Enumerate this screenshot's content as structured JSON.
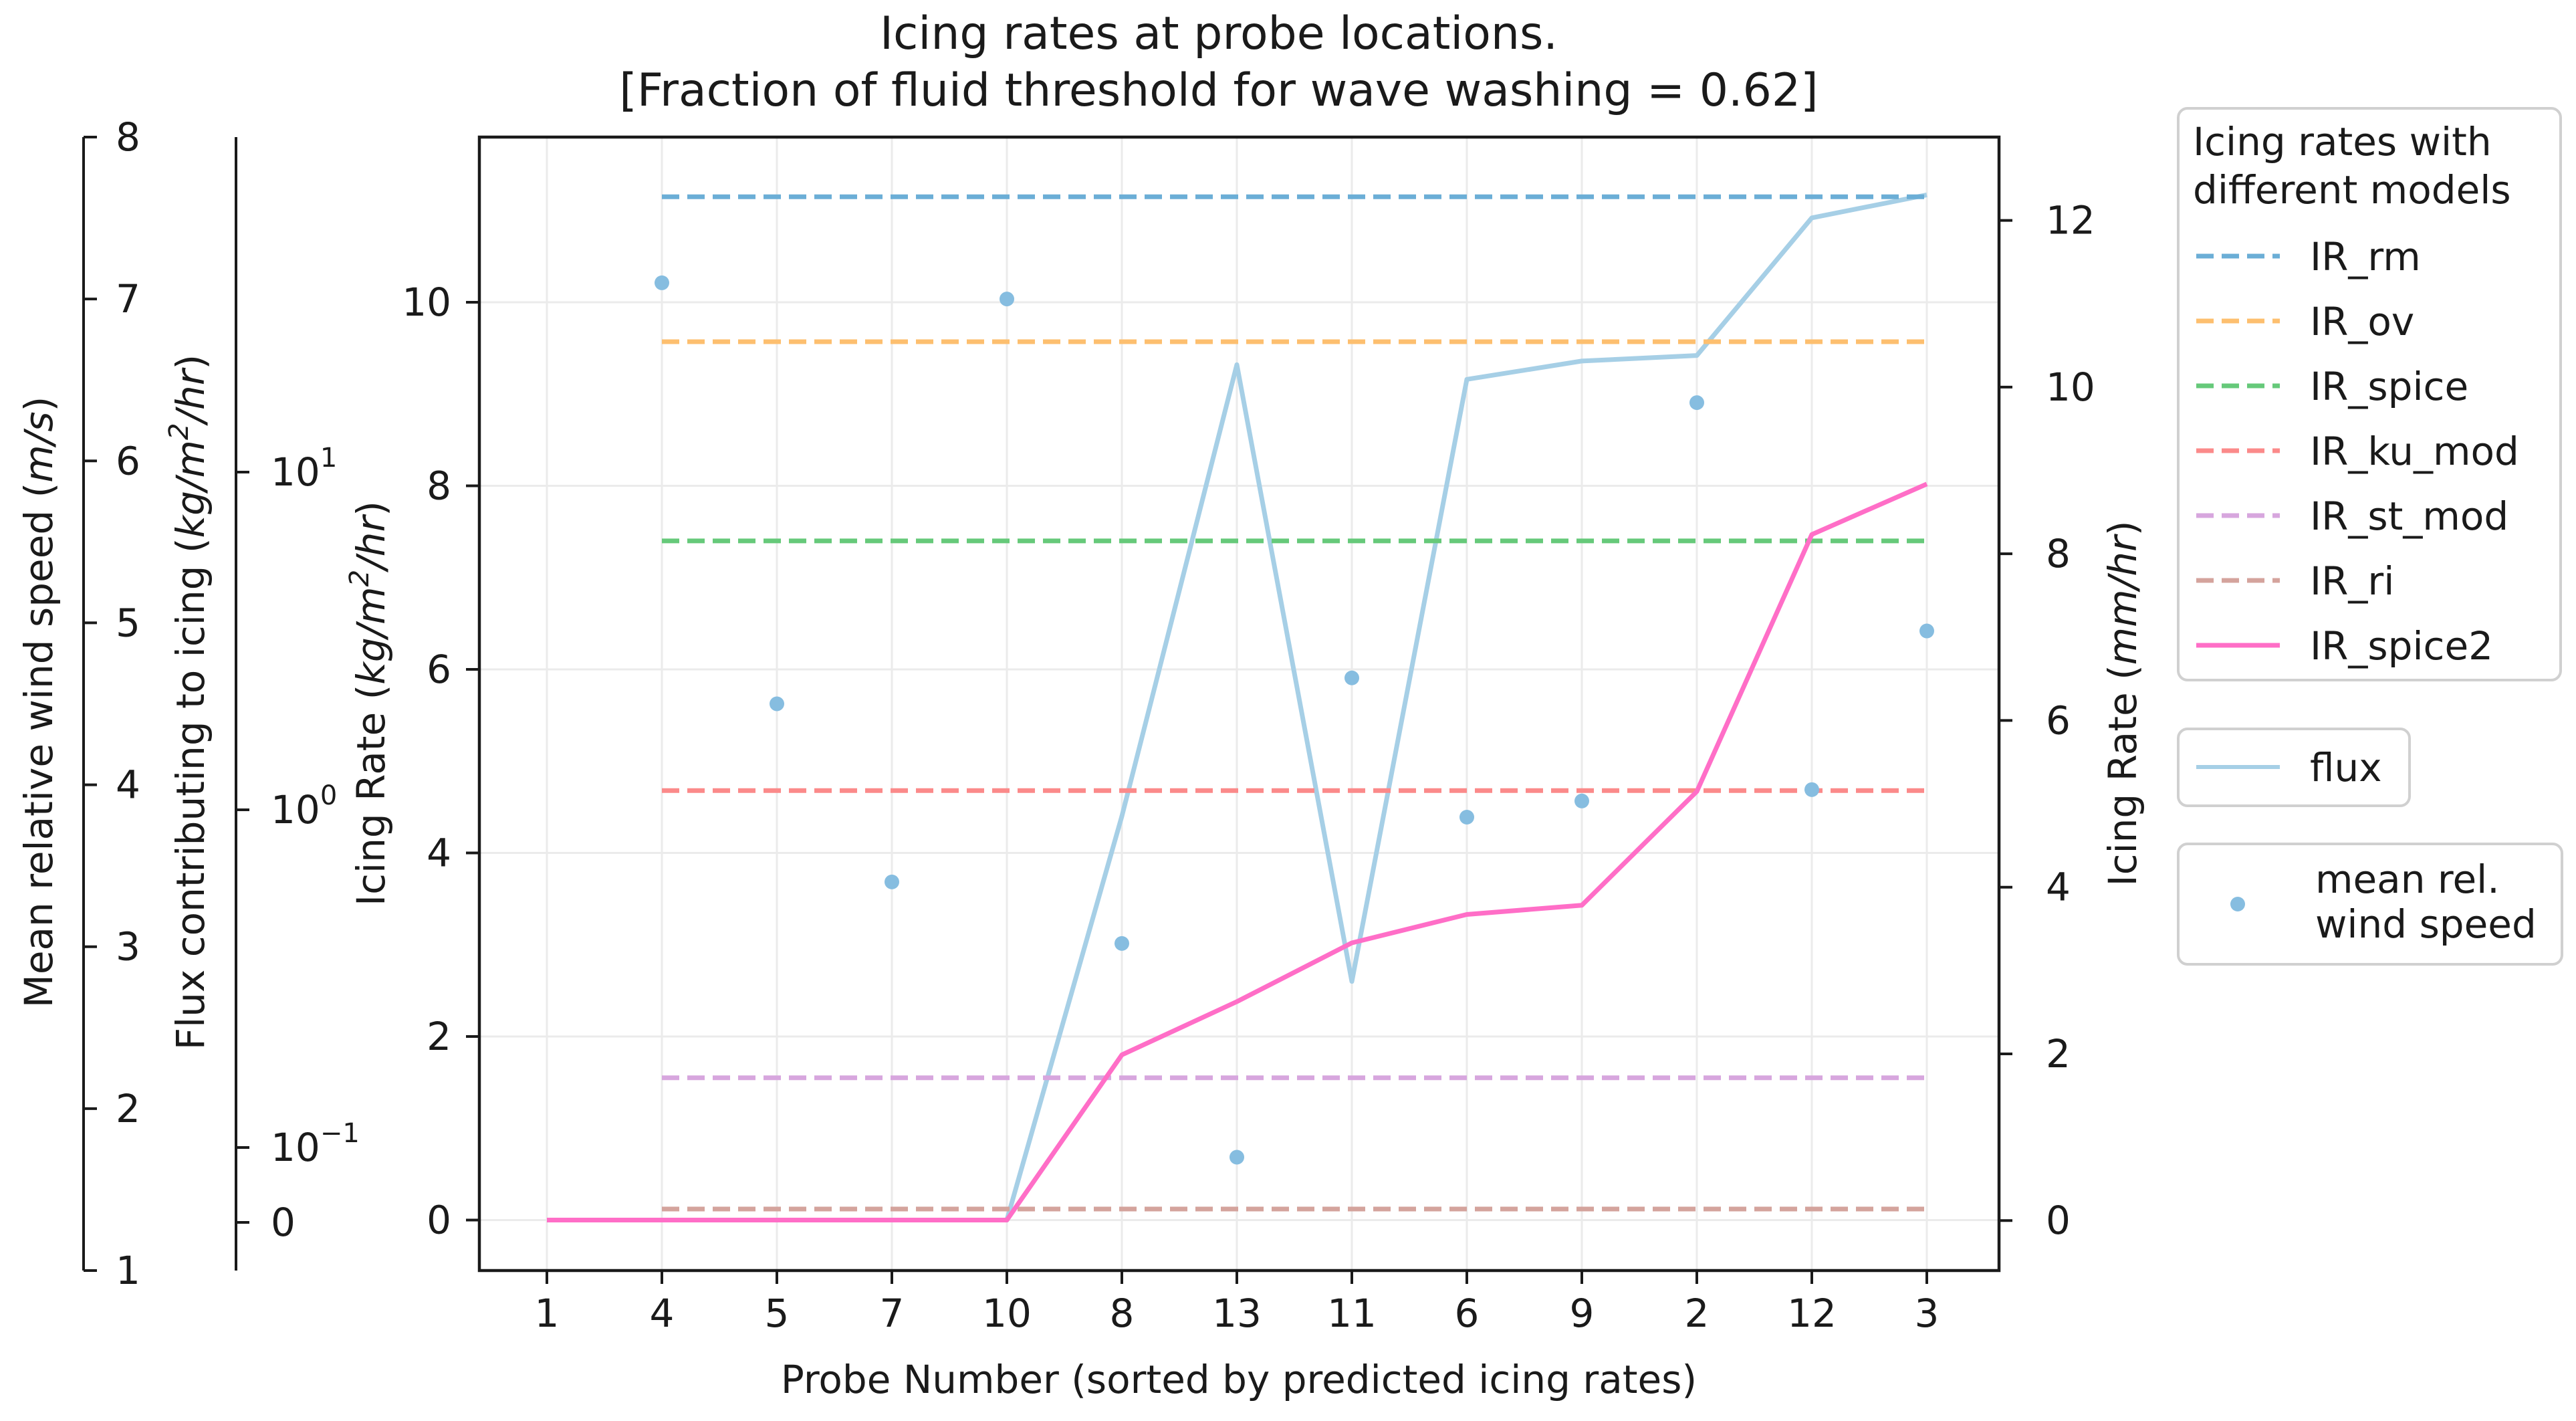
{
  "chart_data": {
    "type": "line",
    "title": [
      "Icing rates at probe locations.",
      "[Fraction of fluid threshold for wave washing = 0.62]"
    ],
    "xlabel": "Probe Number (sorted by predicted icing rates)",
    "categories": [
      "1",
      "4",
      "5",
      "7",
      "10",
      "8",
      "13",
      "11",
      "6",
      "9",
      "2",
      "12",
      "3"
    ],
    "axes": {
      "left_primary": {
        "label": "Icing Rate (kg/m²/hr)",
        "label_parts": [
          "Icing Rate (",
          "kg/m",
          "2",
          "/hr",
          ")"
        ],
        "ylim": [
          -0.55,
          11.8
        ],
        "ticks": [
          0,
          2,
          4,
          6,
          8,
          10
        ]
      },
      "right": {
        "label": "Icing Rate (mm/hr)",
        "label_parts": [
          "Icing Rate (",
          "mm/hr",
          ")"
        ],
        "ylim": [
          -0.6,
          13.0
        ],
        "ticks": [
          0,
          2,
          4,
          6,
          8,
          10,
          12
        ]
      },
      "flux": {
        "label": "Flux contributing to icing (kg/m²/hr)",
        "label_parts": [
          "Flux contributing to icing (",
          "kg/m",
          "2",
          "/hr",
          ")"
        ],
        "scale": "symlog",
        "linthresh": 0.1,
        "ticks": [
          {
            "value": 0,
            "base": "0",
            "exp": ""
          },
          {
            "value": 0.1,
            "base": "10",
            "exp": "−1"
          },
          {
            "value": 1,
            "base": "10",
            "exp": "0"
          },
          {
            "value": 10,
            "base": "10",
            "exp": "1"
          }
        ]
      },
      "wind": {
        "label": "Mean relative wind speed (m/s)",
        "label_parts": [
          "Mean relative wind speed (",
          "m/s",
          ")"
        ],
        "ylim": [
          1,
          8
        ],
        "ticks": [
          1,
          2,
          3,
          4,
          5,
          6,
          7,
          8
        ]
      }
    },
    "series": [
      {
        "name": "IR_rm",
        "color": "#6baed6",
        "style": "dashed",
        "values": [
          null,
          11.15,
          11.15,
          11.15,
          11.15,
          11.15,
          11.15,
          11.15,
          11.15,
          11.15,
          11.15,
          11.15,
          11.15
        ]
      },
      {
        "name": "IR_ov",
        "color": "#fdbf6f",
        "style": "dashed",
        "values": [
          null,
          9.57,
          9.57,
          9.57,
          9.57,
          9.57,
          9.57,
          9.57,
          9.57,
          9.57,
          9.57,
          9.57,
          9.57
        ]
      },
      {
        "name": "IR_spice",
        "color": "#66c97a",
        "style": "dashed",
        "values": [
          null,
          7.4,
          7.4,
          7.4,
          7.4,
          7.4,
          7.4,
          7.4,
          7.4,
          7.4,
          7.4,
          7.4,
          7.4
        ]
      },
      {
        "name": "IR_ku_mod",
        "color": "#fb8a8a",
        "style": "dashed",
        "values": [
          null,
          4.68,
          4.68,
          4.68,
          4.68,
          4.68,
          4.68,
          4.68,
          4.68,
          4.68,
          4.68,
          4.68,
          4.68
        ]
      },
      {
        "name": "IR_st_mod",
        "color": "#d7a6de",
        "style": "dashed",
        "values": [
          null,
          1.55,
          1.55,
          1.55,
          1.55,
          1.55,
          1.55,
          1.55,
          1.55,
          1.55,
          1.55,
          1.55,
          1.55
        ]
      },
      {
        "name": "IR_ri",
        "color": "#d4a39c",
        "style": "dashed",
        "values": [
          null,
          0.12,
          0.12,
          0.12,
          0.12,
          0.12,
          0.12,
          0.12,
          0.12,
          0.12,
          0.12,
          0.12,
          0.12
        ]
      },
      {
        "name": "IR_spice2",
        "color": "#ff6ec7",
        "style": "solid",
        "values": [
          0,
          0,
          0,
          0,
          0,
          1.8,
          2.38,
          3.02,
          3.33,
          3.43,
          4.67,
          7.47,
          8.02
        ]
      }
    ],
    "flux_series": {
      "name": "flux",
      "color": "#a6cfe6",
      "axis_positions": [
        0,
        0,
        0,
        0,
        0,
        4.4,
        9.32,
        2.6,
        9.16,
        9.36,
        9.42,
        10.92,
        11.17
      ]
    },
    "wind_series": {
      "name": "mean rel. wind speed",
      "color": "#86bde0",
      "values": [
        null,
        7.1,
        4.5,
        3.4,
        7.0,
        3.02,
        1.7,
        4.66,
        3.8,
        3.9,
        6.36,
        3.97,
        4.95
      ]
    },
    "legends": [
      {
        "title": [
          "Icing rates with",
          "different models"
        ],
        "items": [
          "IR_rm",
          "IR_ov",
          "IR_spice",
          "IR_ku_mod",
          "IR_st_mod",
          "IR_ri",
          "IR_spice2"
        ]
      },
      {
        "title": [],
        "items": [
          "flux"
        ]
      },
      {
        "title": [],
        "items": [
          "mean rel.",
          "wind speed"
        ]
      }
    ],
    "grid": true
  }
}
